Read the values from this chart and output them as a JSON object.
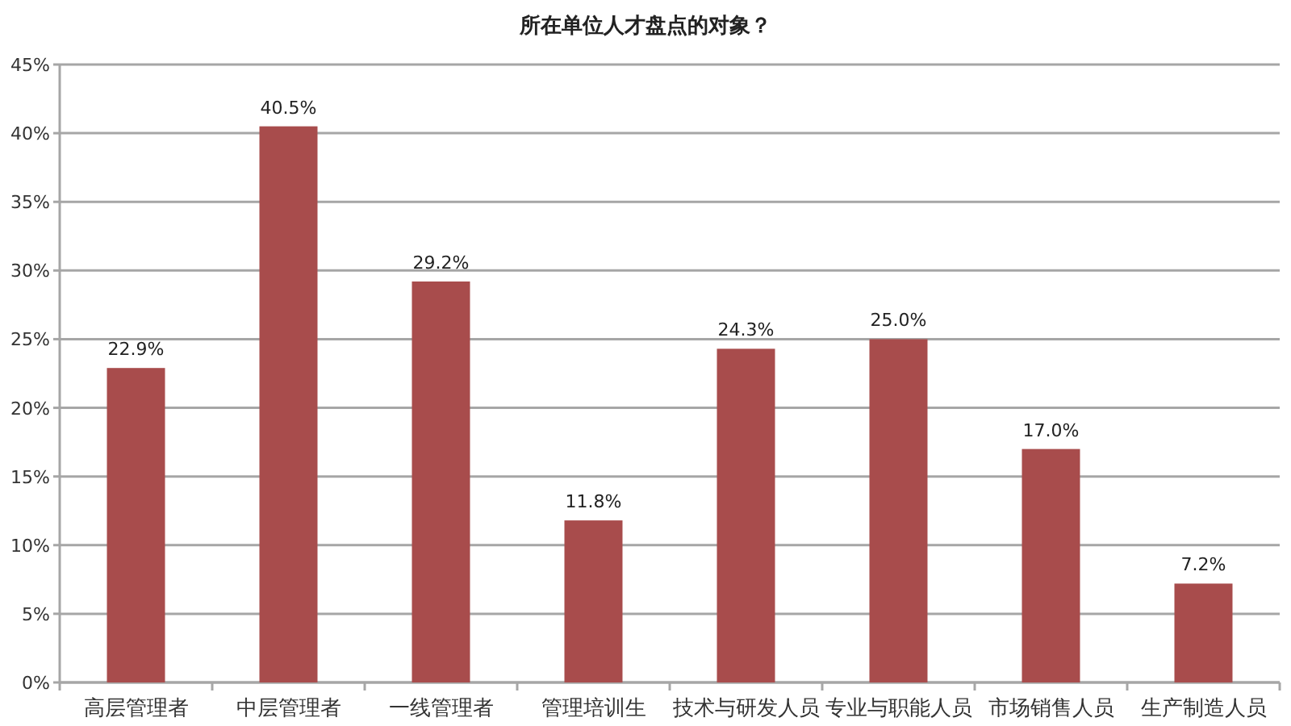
{
  "chart_data": {
    "type": "bar",
    "title": "所在单位人才盘点的对象？",
    "categories": [
      "高层管理者",
      "中层管理者",
      "一线管理者",
      "管理培训生",
      "技术与研发人员",
      "专业与职能人员",
      "市场销售人员",
      "生产制造人员"
    ],
    "values": [
      22.9,
      40.5,
      29.2,
      11.8,
      24.3,
      25.0,
      17.0,
      7.2
    ],
    "value_labels": [
      "22.9%",
      "40.5%",
      "29.2%",
      "11.8%",
      "24.3%",
      "25.0%",
      "17.0%",
      "7.2%"
    ],
    "color": "#a84c4c",
    "ylim": [
      0,
      45
    ],
    "yticks": [
      {
        "value": 0,
        "label": "0%"
      },
      {
        "value": 5,
        "label": "5%"
      },
      {
        "value": 10,
        "label": "10%"
      },
      {
        "value": 15,
        "label": "15%"
      },
      {
        "value": 20,
        "label": "20%"
      },
      {
        "value": 25,
        "label": "25%"
      },
      {
        "value": 30,
        "label": "30%"
      },
      {
        "value": 35,
        "label": "35%"
      },
      {
        "value": 40,
        "label": "40%"
      },
      {
        "value": 45,
        "label": "45%"
      }
    ],
    "grid": "y"
  }
}
